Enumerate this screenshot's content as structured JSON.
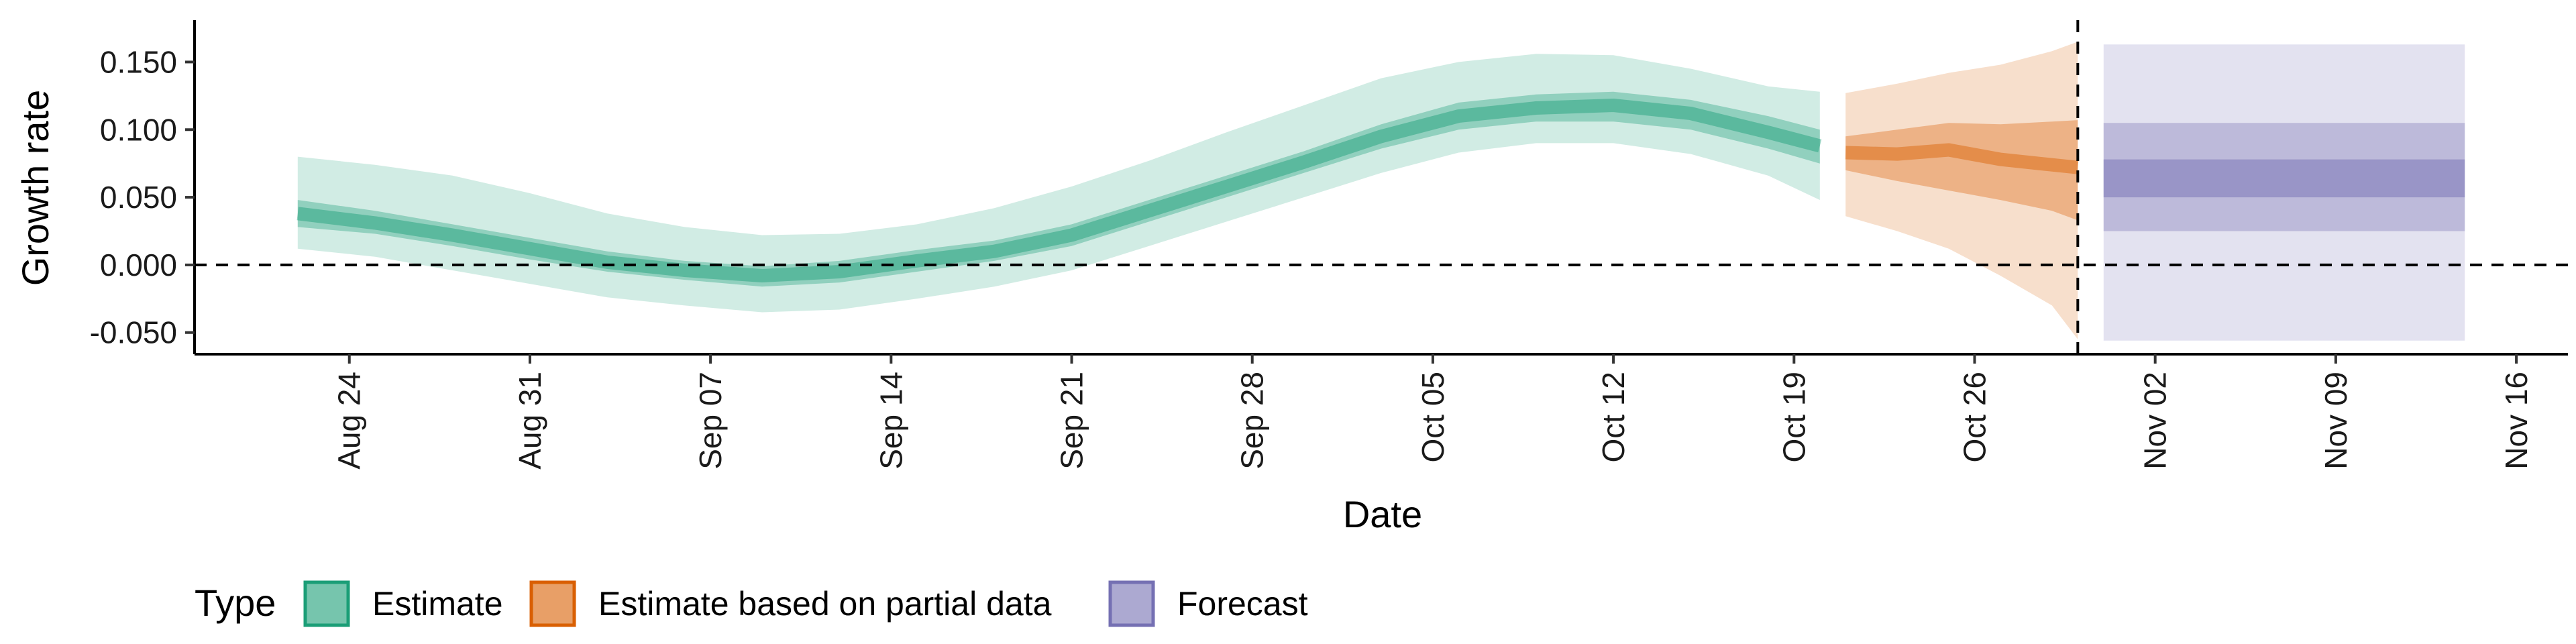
{
  "chart_data": {
    "type": "area",
    "xlabel": "Date",
    "ylabel": "Growth rate",
    "x_ticks": [
      "2020-08-24",
      "2020-08-31",
      "2020-09-07",
      "2020-09-14",
      "2020-09-21",
      "2020-09-28",
      "2020-10-05",
      "2020-10-12",
      "2020-10-19",
      "2020-10-26",
      "2020-11-02",
      "2020-11-09",
      "2020-11-16"
    ],
    "x_tick_labels": [
      "Aug 24",
      "Aug 31",
      "Sep 07",
      "Sep 14",
      "Sep 21",
      "Sep 28",
      "Oct 05",
      "Oct 12",
      "Oct 19",
      "Oct 26",
      "Nov 02",
      "Nov 09",
      "Nov 16"
    ],
    "xlim": [
      "2020-08-18",
      "2020-11-18"
    ],
    "y_ticks": [
      -0.05,
      0.0,
      0.05,
      0.1,
      0.15
    ],
    "y_tick_labels": [
      "-0.050",
      "0.000",
      "0.050",
      "0.100",
      "0.150"
    ],
    "ylim": [
      -0.066,
      0.176
    ],
    "hline_y": 0.0,
    "vline_x": "2020-10-30",
    "grid": false,
    "legend": {
      "title": "Type",
      "position": "bottom",
      "entries": [
        "Estimate",
        "Estimate based on partial data",
        "Forecast"
      ]
    },
    "series": [
      {
        "name": "Estimate",
        "color": "#1b9e77",
        "x": [
          "2020-08-22",
          "2020-08-25",
          "2020-08-28",
          "2020-08-31",
          "2020-09-03",
          "2020-09-06",
          "2020-09-09",
          "2020-09-12",
          "2020-09-15",
          "2020-09-18",
          "2020-09-21",
          "2020-09-24",
          "2020-09-27",
          "2020-09-30",
          "2020-10-03",
          "2020-10-06",
          "2020-10-09",
          "2020-10-12",
          "2020-10-15",
          "2020-10-18",
          "2020-10-20"
        ],
        "median": [
          0.038,
          0.031,
          0.022,
          0.012,
          0.002,
          -0.004,
          -0.008,
          -0.005,
          0.003,
          0.01,
          0.022,
          0.04,
          0.058,
          0.076,
          0.095,
          0.11,
          0.116,
          0.118,
          0.112,
          0.098,
          0.088
        ],
        "lower_50": [
          0.028,
          0.023,
          0.014,
          0.004,
          -0.005,
          -0.011,
          -0.016,
          -0.013,
          -0.005,
          0.003,
          0.014,
          0.032,
          0.05,
          0.068,
          0.086,
          0.1,
          0.106,
          0.106,
          0.1,
          0.086,
          0.075
        ],
        "upper_50": [
          0.048,
          0.04,
          0.03,
          0.02,
          0.01,
          0.003,
          -0.001,
          0.003,
          0.011,
          0.018,
          0.03,
          0.048,
          0.066,
          0.084,
          0.104,
          0.12,
          0.126,
          0.128,
          0.122,
          0.11,
          0.1
        ],
        "lower_90": [
          0.012,
          0.006,
          -0.004,
          -0.014,
          -0.024,
          -0.03,
          -0.035,
          -0.033,
          -0.025,
          -0.016,
          -0.004,
          0.014,
          0.032,
          0.05,
          0.068,
          0.083,
          0.09,
          0.09,
          0.082,
          0.066,
          0.048
        ],
        "upper_90": [
          0.08,
          0.074,
          0.066,
          0.053,
          0.038,
          0.028,
          0.022,
          0.023,
          0.03,
          0.042,
          0.058,
          0.077,
          0.098,
          0.118,
          0.138,
          0.15,
          0.156,
          0.155,
          0.145,
          0.132,
          0.128
        ]
      },
      {
        "name": "Estimate based on partial data",
        "color": "#d95f02",
        "x": [
          "2020-10-21",
          "2020-10-23",
          "2020-10-25",
          "2020-10-27",
          "2020-10-29",
          "2020-10-30"
        ],
        "median": [
          0.083,
          0.082,
          0.085,
          0.078,
          0.074,
          0.072
        ],
        "lower_50": [
          0.07,
          0.062,
          0.055,
          0.048,
          0.04,
          0.033
        ],
        "upper_50": [
          0.095,
          0.1,
          0.105,
          0.104,
          0.106,
          0.107
        ],
        "lower_90": [
          0.036,
          0.025,
          0.012,
          -0.008,
          -0.03,
          -0.055
        ],
        "upper_90": [
          0.127,
          0.134,
          0.142,
          0.148,
          0.158,
          0.165
        ]
      },
      {
        "name": "Forecast",
        "color": "#7570b3",
        "x": [
          "2020-10-31",
          "2020-11-14"
        ],
        "median": [
          0.079,
          0.079
        ],
        "lower_50": [
          0.05,
          0.05
        ],
        "upper_50": [
          0.078,
          0.078
        ],
        "lower_90": [
          0.025,
          0.025
        ],
        "upper_90": [
          0.105,
          0.105
        ],
        "lower_outer": [
          -0.056,
          -0.056
        ],
        "upper_outer": [
          0.163,
          0.163
        ]
      }
    ]
  }
}
